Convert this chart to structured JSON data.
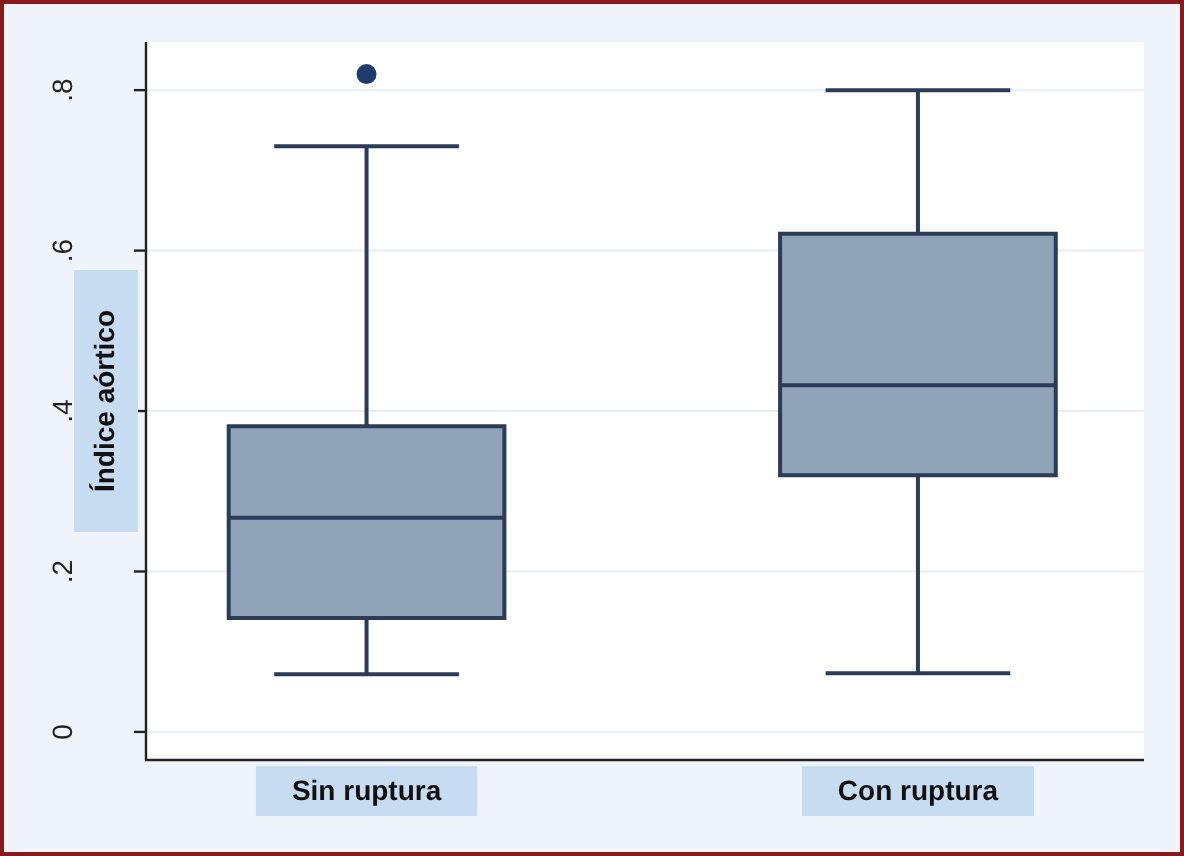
{
  "chart_data": {
    "type": "box",
    "categories": [
      "Sin ruptura",
      "Con ruptura"
    ],
    "ylabel": "Índice aórtico",
    "series": [
      {
        "color": "#8fa3b9",
        "boxes": [
          {
            "low": 0.072,
            "q1": 0.142,
            "median": 0.267,
            "q3": 0.381,
            "high": 0.73,
            "outliers": [
              0.82
            ]
          },
          {
            "low": 0.073,
            "q1": 0.32,
            "median": 0.432,
            "q3": 0.621,
            "high": 0.8
          }
        ]
      }
    ],
    "ylim": [
      -0.035,
      0.86
    ],
    "yticks": [
      0,
      {
        "value": 0.2,
        "label": ".2"
      },
      {
        "value": 0.4,
        "label": ".4"
      },
      {
        "value": 0.6,
        "label": ".6"
      },
      {
        "value": 0.8,
        "label": ".8"
      }
    ],
    "grid": "y"
  }
}
